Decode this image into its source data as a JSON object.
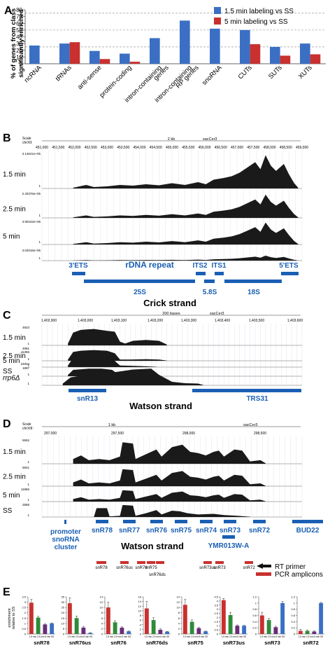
{
  "colors": {
    "blue": "#3a6fc4",
    "red": "#c8312f",
    "green": "#2e8b3a",
    "purple": "#6a2c7a",
    "gene": "#1a5fb4",
    "signal": "#1a1a1a",
    "axisline": "#999999",
    "scaleLine": "#d33"
  },
  "panels": {
    "A": "A",
    "B": "B",
    "C": "C",
    "D": "D",
    "E": "E"
  },
  "panelA": {
    "ylabel_lines": [
      "% of genes from class",
      "significantly enriched"
    ],
    "yticks": [
      "0",
      "10",
      "20",
      "30",
      "40",
      "50",
      "60",
      "70",
      "80"
    ],
    "legend": [
      "1.5 min labeling vs SS",
      "5 min labeling vs SS"
    ]
  },
  "chart_data": [
    {
      "type": "bar",
      "ylabel": "% of genes from class significantly enriched",
      "ylim": [
        0,
        80
      ],
      "grid_dashed_at": [
        25,
        50,
        75
      ],
      "categories": [
        "ncRNA",
        "tRNAs",
        "anti-sense",
        "protein-coding",
        "intron-containing genes",
        "intron-containing RP genes",
        "snoRNA",
        "CUTs",
        "SUTs",
        "XUTs"
      ],
      "category_lines": [
        [
          "ncRNA"
        ],
        [
          "tRNAs"
        ],
        [
          "anti-sense"
        ],
        [
          "protein-coding"
        ],
        [
          "intron-containing",
          "genes"
        ],
        [
          "intron-containing",
          "RP genes"
        ],
        [
          "snoRNA"
        ],
        [
          "CUTs"
        ],
        [
          "SUTs"
        ],
        [
          "XUTs"
        ]
      ],
      "series": [
        {
          "name": "1.5 min labeling vs SS",
          "values": [
            27,
            30,
            19,
            15,
            38,
            64,
            52,
            50,
            25,
            30
          ]
        },
        {
          "name": "5 min labeling vs SS",
          "values": [
            0,
            32,
            7,
            3,
            0,
            0,
            0,
            29,
            12,
            14
          ]
        }
      ]
    },
    {
      "type": "bar",
      "ylabel": "enrichment relative to SS",
      "categories": [
        "1.5 min",
        "2.5 min",
        "5 min",
        "SS"
      ],
      "panels": [
        {
          "title": "snR78",
          "yticks": [
            "0",
            "0.5",
            "1",
            "1.5",
            "2",
            "2.5",
            "3",
            "3.5"
          ],
          "ymax": 3.5,
          "values": [
            2.95,
            1.55,
            0.9,
            1.0
          ],
          "errors": [
            0.3,
            0.12,
            0.05,
            0.05
          ]
        },
        {
          "title": "snR76us",
          "yticks": [
            "0",
            "5",
            "10",
            "15",
            "20",
            "25",
            "30",
            "35"
          ],
          "ymax": 35,
          "values": [
            29,
            15,
            6,
            1
          ],
          "errors": [
            5,
            2,
            1,
            0.2
          ]
        },
        {
          "title": "snR76",
          "yticks": [
            "0",
            "2",
            "4",
            "6",
            "8",
            "10",
            "12",
            "14"
          ],
          "ymax": 14,
          "values": [
            10,
            4.4,
            2.4,
            1
          ],
          "errors": [
            2,
            0.6,
            0.3,
            0.1
          ]
        },
        {
          "title": "snR76ds",
          "yticks": [
            "0",
            "2",
            "4",
            "6",
            "8",
            "10",
            "12",
            "14",
            "16"
          ],
          "ymax": 16,
          "values": [
            11,
            6,
            1.8,
            1
          ],
          "errors": [
            3,
            1,
            0.4,
            0.1
          ]
        },
        {
          "title": "snR75",
          "yticks": [
            "0",
            "2",
            "4",
            "6",
            "8",
            "10",
            "12",
            "14"
          ],
          "ymax": 14,
          "values": [
            11,
            4.6,
            2.2,
            1
          ],
          "errors": [
            2,
            0.7,
            0.3,
            0.1
          ]
        },
        {
          "title": "snR73us",
          "yticks": [
            "0",
            "0.5",
            "1",
            "1.5",
            "2",
            "2.5",
            "3",
            "3.5",
            "4",
            "4.5"
          ],
          "ymax": 4.5,
          "values": [
            4.1,
            2.3,
            1.0,
            1.0
          ],
          "errors": [
            0.2,
            0.3,
            0.1,
            0.05
          ]
        },
        {
          "title": "snR73",
          "yticks": [
            "0",
            "0.2",
            "0.4",
            "0.6",
            "0.8",
            "1",
            "1.2"
          ],
          "ymax": 1.2,
          "values": [
            0.6,
            0.45,
            0.22,
            1
          ],
          "errors": [
            0.1,
            0.05,
            0.03,
            0.05
          ]
        },
        {
          "title": "snR72",
          "yticks": [
            "0",
            "0.2",
            "0.4",
            "0.6",
            "0.8",
            "1",
            "1.2"
          ],
          "ymax": 1.2,
          "values": [
            0.1,
            0.1,
            0.08,
            1
          ],
          "errors": [
            0.05,
            0.03,
            0.02,
            0.02
          ]
        }
      ],
      "xtick_text": "1.5 min 2.5 min  5 min   SS"
    }
  ],
  "panelB": {
    "scale_labels": [
      "Scale",
      "chrXII:"
    ],
    "scale_title": "2 kb",
    "assembly": "sacCer3",
    "coords": [
      "451,000",
      "451,500",
      "452,000",
      "452,500",
      "453,000",
      "453,500",
      "454,000",
      "454,500",
      "455,000",
      "455,500",
      "456,000",
      "456,500",
      "457,000",
      "457,500",
      "458,000",
      "458,500",
      "459,000"
    ],
    "tracks": [
      {
        "label": "1.5 min",
        "max": "3.14641e+05",
        "min": "1"
      },
      {
        "label": "2.5 min",
        "max": "2.40376e+05",
        "min": "1"
      },
      {
        "label": "5 min",
        "max": "3.90242e+05",
        "min": "1"
      },
      {
        "label": "",
        "max": "3.02016e+05",
        "min": "1"
      }
    ],
    "features": {
      "ets3": "3'ETS",
      "rdna": "rDNA repeat",
      "its2": "ITS2",
      "its1": "ITS1",
      "ets5": "5'ETS",
      "s25": "25S",
      "s58": "5.8S",
      "s18": "18S"
    },
    "strand": "Crick strand"
  },
  "panelC": {
    "scale_title": "200 bases",
    "assembly": "sacCer3",
    "coords": [
      "1,402,900",
      "1,403,000",
      "1,403,100",
      "1,403,200",
      "1,403,300",
      "1,403,400",
      "1,403,500",
      "1,403,600",
      "1,403,700"
    ],
    "tracks": [
      {
        "label": "1.5 min",
        "max": "4923",
        "min": "1"
      },
      {
        "label": "2.5 min",
        "max": "4991",
        "min": "1"
      },
      {
        "label": "5 min",
        "max": "11356",
        "min": "1"
      },
      {
        "label": "SS",
        "max": "24834",
        "min": "1"
      },
      {
        "label": "rrp6Δ",
        "max": "1897",
        "min": "1"
      }
    ],
    "features": {
      "snr13": "snR13",
      "trs31": "TRS31"
    },
    "strand": "Watson strand"
  },
  "panelD": {
    "scale_labels": [
      "Scale",
      "chrXIII:"
    ],
    "scale_title": "1 kb",
    "assembly": "sacCer3",
    "coords": [
      "297,000",
      "297,500",
      "298,000",
      "298,500",
      "299,000"
    ],
    "tracks": [
      {
        "label": "1.5 min",
        "max": "5552",
        "min": "1"
      },
      {
        "label": "2.5 min",
        "max": "5921",
        "min": "1"
      },
      {
        "label": "5 min",
        "max": "11866",
        "min": "1"
      },
      {
        "label": "SS",
        "max": "2858",
        "min": "1"
      }
    ],
    "promoter_lines": [
      "promoter",
      "snoRNA",
      "cluster"
    ],
    "genes": [
      "snR78",
      "snR77",
      "snR76",
      "snR75",
      "snR74",
      "snR73",
      "snR72",
      "BUD22"
    ],
    "gene2": "YMR013W-A",
    "strand": "Watson strand",
    "amplicons": [
      "snR78",
      "snR76us",
      "snR76",
      "snR75",
      "snR73us",
      "snR73",
      "snR72"
    ],
    "amplicon2": "snR76ds",
    "legend": [
      "RT primer",
      "PCR amplicons"
    ]
  }
}
